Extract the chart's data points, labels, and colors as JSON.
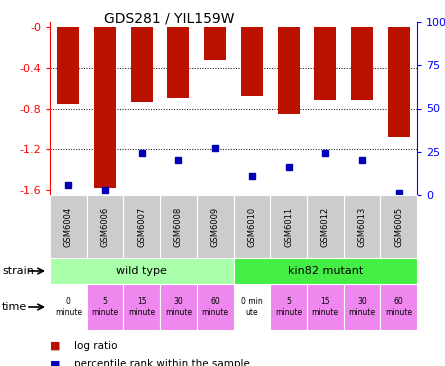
{
  "title": "GDS281 / YIL159W",
  "samples": [
    "GSM6004",
    "GSM6006",
    "GSM6007",
    "GSM6008",
    "GSM6009",
    "GSM6010",
    "GSM6011",
    "GSM6012",
    "GSM6013",
    "GSM6005"
  ],
  "log_ratios": [
    -0.76,
    -1.58,
    -0.74,
    -0.7,
    -0.32,
    -0.68,
    -0.85,
    -0.72,
    -0.72,
    -1.08
  ],
  "percentile_ranks": [
    6,
    3,
    24,
    20,
    27,
    11,
    16,
    24,
    20,
    1
  ],
  "ylim_left": [
    -1.65,
    0.05
  ],
  "ylim_right": [
    0,
    100
  ],
  "yticks_left": [
    0.0,
    -0.4,
    -0.8,
    -1.2,
    -1.6
  ],
  "ytick_labels_left": [
    "-0",
    "-0.4",
    "-0.8",
    "-1.2",
    "-1.6"
  ],
  "yticks_right": [
    0,
    25,
    50,
    75,
    100
  ],
  "ytick_labels_right": [
    "0",
    "25",
    "50",
    "75",
    "100%"
  ],
  "bar_color": "#bb1100",
  "dot_color": "#0000bb",
  "strain_wild": "wild type",
  "strain_mutant": "kin82 mutant",
  "strain_wt_color": "#aaffaa",
  "strain_mut_color": "#44ee44",
  "sample_bg_color": "#cccccc",
  "time_labels": [
    "0\nminute",
    "5\nminute",
    "15\nminute",
    "30\nminute",
    "60\nminute",
    "0 min\nute",
    "5\nminute",
    "15\nminute",
    "30\nminute",
    "60\nminute"
  ],
  "time_colors": [
    "#ffffff",
    "#ee88ee",
    "#ee88ee",
    "#ee88ee",
    "#ee88ee",
    "#ffffff",
    "#ee88ee",
    "#ee88ee",
    "#ee88ee",
    "#ee88ee"
  ],
  "legend_log_ratio_color": "#bb1100",
  "legend_percentile_color": "#0000bb",
  "bg_color": "#ffffff"
}
